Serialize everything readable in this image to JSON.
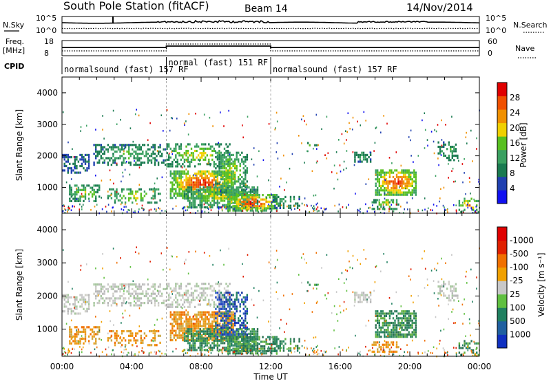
{
  "header": {
    "station": "South Pole Station (fitACF)",
    "beam": "Beam 14",
    "date": "14/Nov/2014"
  },
  "panels": {
    "nsky": {
      "label": "N.Sky",
      "ticks": [
        "10^5",
        "10^0"
      ],
      "right_label": "N.Search",
      "right_ticks": [
        "10^5",
        "10^0"
      ]
    },
    "freq": {
      "label_line1": "Freq.",
      "label_line2": "[MHz]",
      "ticks": [
        "18",
        "8"
      ],
      "right_label": "Nave",
      "right_ticks": [
        "60",
        "0"
      ]
    },
    "cpid": {
      "label": "CPID",
      "segments": [
        {
          "start_hour": 0,
          "end_hour": 6,
          "label": "normalsound (fast) 157 RF"
        },
        {
          "start_hour": 6,
          "end_hour": 12,
          "label": "normal (fast) 151 RF"
        },
        {
          "start_hour": 12,
          "end_hour": 24,
          "label": "normalsound (fast) 157 RF"
        }
      ]
    }
  },
  "chart_data": [
    {
      "type": "heatmap",
      "name": "power",
      "ylabel": "Slant Range [km]",
      "yticks": [
        1000,
        2000,
        3000,
        4000
      ],
      "ylim": [
        180,
        4500
      ],
      "xlim": [
        0,
        24
      ],
      "colorbar": {
        "label": "Power [dB]",
        "ticks": [
          "4",
          "8",
          "12",
          "16",
          "20",
          "24",
          "28"
        ],
        "colors": [
          "#1010f0",
          "#2040b0",
          "#1a7a50",
          "#3aa060",
          "#58c020",
          "#f0d000",
          "#f09000",
          "#f05000",
          "#e00000"
        ]
      }
    },
    {
      "type": "heatmap",
      "name": "velocity",
      "ylabel": "Slant Range [km]",
      "yticks": [
        1000,
        2000,
        3000,
        4000
      ],
      "ylim": [
        180,
        4500
      ],
      "xlim": [
        0,
        24
      ],
      "xticks": [
        "00:00",
        "04:00",
        "08:00",
        "12:00",
        "16:00",
        "20:00",
        "00:00"
      ],
      "xlabel": "Time UT",
      "colorbar": {
        "label": "Velocity [m s⁻¹]",
        "ticks": [
          "1000",
          "500",
          "100",
          "25",
          "-25",
          "-100",
          "-500",
          "-1000"
        ],
        "colors": [
          "#1030c0",
          "#2060a0",
          "#208060",
          "#60c040",
          "#c8c8c8",
          "#f0a000",
          "#f07000",
          "#e02000",
          "#e00000"
        ]
      }
    }
  ]
}
